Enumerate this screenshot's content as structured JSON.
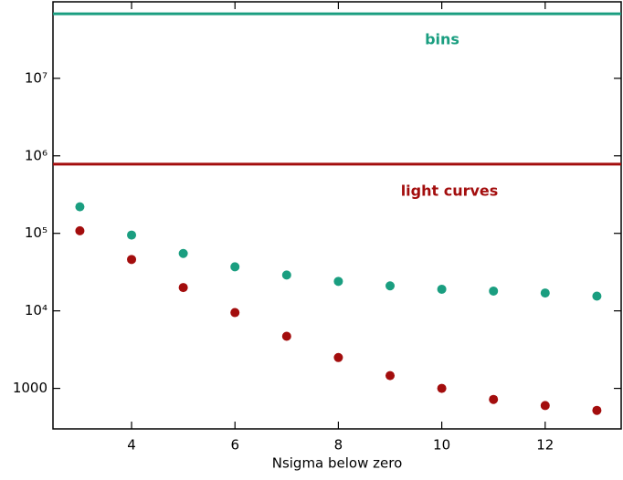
{
  "chart_data": {
    "type": "scatter",
    "x_label": "Nsigma below zero",
    "x": [
      3,
      4,
      5,
      6,
      7,
      8,
      9,
      10,
      11,
      12,
      13
    ],
    "xlim": [
      2.48,
      13.47
    ],
    "xticks": [
      4,
      6,
      8,
      10,
      12
    ],
    "ylim": [
      300,
      97000000
    ],
    "yscale": "log",
    "yticks": [
      1000,
      {
        "value": 10000,
        "label": "10⁴"
      },
      {
        "value": 100000,
        "label": "10⁵"
      },
      {
        "value": 1000000,
        "label": "10⁶"
      },
      {
        "value": 10000000,
        "label": "10⁷"
      }
    ],
    "series": [
      {
        "name": "bins",
        "color": "#1a9e80",
        "line_value": 68000000,
        "values": [
          220000,
          95000,
          55000,
          37000,
          29000,
          24000,
          21000,
          19000,
          18000,
          17000,
          15500
        ]
      },
      {
        "name": "light curves",
        "color": "#a30d0d",
        "line_value": 780000,
        "values": [
          108000,
          46000,
          20000,
          9500,
          4700,
          2500,
          1460,
          1000,
          720,
          600,
          520
        ]
      }
    ]
  }
}
